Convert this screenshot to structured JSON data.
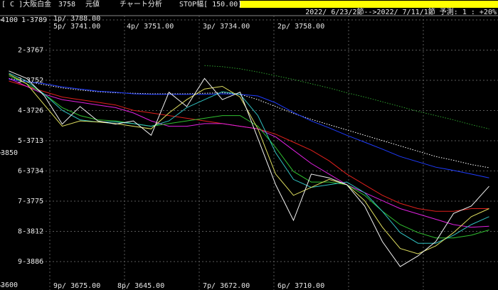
{
  "header": {
    "symbol": "[ C ]大阪白金",
    "price": "3758",
    "mode": "元値",
    "menu": "チャート分析",
    "stop": "STOP幅[ 150.00]",
    "period": "2022/ 6/23/2節-->2022/ 7/11/1節 予測: 1 : +20%"
  },
  "chart_data": {
    "type": "line",
    "ylim": [
      3600,
      4100
    ],
    "yticks": [
      3600,
      3850,
      4100
    ],
    "row_labels": [
      "1-3789",
      "2-3767",
      "3-3752",
      "4-3726",
      "5-3713",
      "6-3734",
      "7-3775",
      "8-3812",
      "9-3886"
    ],
    "pivot_labels": [
      "1p/ 3788.00",
      "5p/ 3741.00",
      "4p/ 3751.00",
      "3p/ 3734.00",
      "2p/ 3758.00",
      "9p/ 3675.00",
      "8p/ 3645.00",
      "7p/ 3672.00",
      "6p/ 3710.00"
    ],
    "categories": [
      null,
      null,
      null,
      null,
      null,
      null,
      null,
      null,
      null,
      null,
      null,
      null,
      null,
      null,
      null,
      null,
      null,
      null,
      null,
      null,
      null,
      null,
      null,
      null,
      null,
      null,
      null,
      null
    ],
    "series": [
      {
        "color": "#2e9e2e",
        "dash": true,
        "values": [
          null,
          null,
          null,
          null,
          null,
          null,
          null,
          null,
          null,
          null,
          null,
          4014,
          4012,
          4008,
          4002,
          3995,
          3988,
          3980,
          3972,
          3963,
          3955,
          3946,
          3937,
          3928,
          3920,
          3912,
          3903,
          3895
        ]
      },
      {
        "color": "#ffffff",
        "dash": true,
        "values": [
          3990,
          3984,
          3978,
          3972,
          3968,
          3965,
          3963,
          3962,
          3961,
          3961,
          3961,
          3962,
          3963,
          3960,
          3950,
          3937,
          3924,
          3913,
          3903,
          3893,
          3883,
          3873,
          3863,
          3853,
          3843,
          3836,
          3828,
          3822
        ]
      },
      {
        "color": "#1f3cff",
        "dash": false,
        "values": [
          3988,
          3984,
          3980,
          3974,
          3970,
          3966,
          3964,
          3961,
          3960,
          3960,
          3960,
          3960,
          3961,
          3960,
          3957,
          3944,
          3926,
          3910,
          3897,
          3883,
          3870,
          3857,
          3843,
          3833,
          3823,
          3817,
          3810,
          3803
        ]
      },
      {
        "color": "#e0201c",
        "dash": false,
        "values": [
          3985,
          3975,
          3965,
          3955,
          3950,
          3945,
          3940,
          3930,
          3925,
          3920,
          3915,
          3910,
          3905,
          3900,
          3895,
          3885,
          3870,
          3855,
          3835,
          3810,
          3790,
          3770,
          3755,
          3745,
          3740,
          3740,
          3745,
          3745
        ]
      },
      {
        "color": "#e020e0",
        "dash": false,
        "values": [
          3990,
          3975,
          3960,
          3950,
          3945,
          3940,
          3935,
          3925,
          3910,
          3900,
          3900,
          3905,
          3905,
          3900,
          3895,
          3880,
          3855,
          3830,
          3810,
          3790,
          3775,
          3760,
          3745,
          3735,
          3725,
          3715,
          3710,
          3712
        ]
      },
      {
        "color": "#30c030",
        "dash": false,
        "values": [
          3995,
          3980,
          3960,
          3935,
          3920,
          3912,
          3910,
          3905,
          3900,
          3905,
          3910,
          3915,
          3920,
          3920,
          3900,
          3860,
          3815,
          3795,
          3795,
          3790,
          3770,
          3740,
          3715,
          3700,
          3690,
          3690,
          3695,
          3705
        ]
      },
      {
        "color": "#30c0c0",
        "dash": false,
        "values": [
          4000,
          3985,
          3960,
          3930,
          3912,
          3908,
          3908,
          3905,
          3900,
          3910,
          3935,
          3950,
          3965,
          3960,
          3920,
          3850,
          3800,
          3785,
          3790,
          3795,
          3775,
          3740,
          3700,
          3680,
          3680,
          3695,
          3715,
          3730
        ]
      },
      {
        "color": "#e0e060",
        "dash": false,
        "values": [
          3998,
          3980,
          3940,
          3900,
          3910,
          3908,
          3905,
          3900,
          3895,
          3925,
          3950,
          3970,
          3975,
          3955,
          3895,
          3810,
          3770,
          3785,
          3800,
          3790,
          3760,
          3710,
          3670,
          3660,
          3675,
          3700,
          3730,
          3745
        ]
      },
      {
        "color": "#f2f2f2",
        "dash": false,
        "values": [
          4004,
          3990,
          3957,
          3904,
          3937,
          3910,
          3904,
          3910,
          3883,
          3964,
          3937,
          3990,
          3950,
          3964,
          3877,
          3790,
          3723,
          3810,
          3803,
          3790,
          3750,
          3683,
          3636,
          3656,
          3683,
          3736,
          3750,
          3787
        ]
      }
    ]
  }
}
